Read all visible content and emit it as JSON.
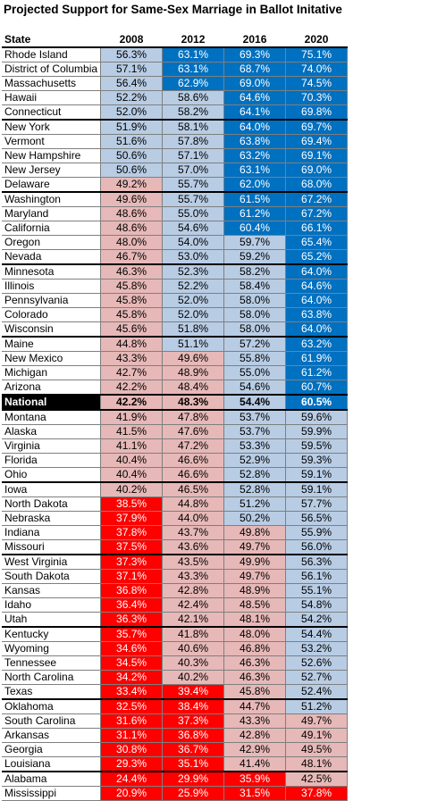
{
  "title": "Projected Support for Same-Sex Marriage in Ballot Initative",
  "table": {
    "header": [
      "State",
      "2008",
      "2012",
      "2016",
      "2020"
    ],
    "rows": [
      [
        "Rhode Island",
        "56.3%",
        "63.1%",
        "69.3%",
        "75.1%"
      ],
      [
        "District of Columbia",
        "57.1%",
        "63.1%",
        "68.7%",
        "74.0%"
      ],
      [
        "Massachusetts",
        "56.4%",
        "62.9%",
        "69.0%",
        "74.5%"
      ],
      [
        "Hawaii",
        "52.2%",
        "58.6%",
        "64.6%",
        "70.3%"
      ],
      [
        "Connecticut",
        "52.0%",
        "58.2%",
        "64.1%",
        "69.8%"
      ],
      [
        "New York",
        "51.9%",
        "58.1%",
        "64.0%",
        "69.7%"
      ],
      [
        "Vermont",
        "51.6%",
        "57.8%",
        "63.8%",
        "69.4%"
      ],
      [
        "New Hampshire",
        "50.6%",
        "57.1%",
        "63.2%",
        "69.1%"
      ],
      [
        "New Jersey",
        "50.6%",
        "57.0%",
        "63.1%",
        "69.0%"
      ],
      [
        "Delaware",
        "49.2%",
        "55.7%",
        "62.0%",
        "68.0%"
      ],
      [
        "Washington",
        "49.6%",
        "55.7%",
        "61.5%",
        "67.2%"
      ],
      [
        "Maryland",
        "48.6%",
        "55.0%",
        "61.2%",
        "67.2%"
      ],
      [
        "California",
        "48.6%",
        "54.6%",
        "60.4%",
        "66.1%"
      ],
      [
        "Oregon",
        "48.0%",
        "54.0%",
        "59.7%",
        "65.4%"
      ],
      [
        "Nevada",
        "46.7%",
        "53.0%",
        "59.2%",
        "65.2%"
      ],
      [
        "Minnesota",
        "46.3%",
        "52.3%",
        "58.2%",
        "64.0%"
      ],
      [
        "Illinois",
        "45.8%",
        "52.2%",
        "58.4%",
        "64.6%"
      ],
      [
        "Pennsylvania",
        "45.8%",
        "52.0%",
        "58.0%",
        "64.0%"
      ],
      [
        "Colorado",
        "45.8%",
        "52.0%",
        "58.0%",
        "63.8%"
      ],
      [
        "Wisconsin",
        "45.6%",
        "51.8%",
        "58.0%",
        "64.0%"
      ],
      [
        "Maine",
        "44.8%",
        "51.1%",
        "57.2%",
        "63.2%"
      ],
      [
        "New Mexico",
        "43.3%",
        "49.6%",
        "55.8%",
        "61.9%"
      ],
      [
        "Michigan",
        "42.7%",
        "48.9%",
        "55.0%",
        "61.2%"
      ],
      [
        "Arizona",
        "42.2%",
        "48.4%",
        "54.6%",
        "60.7%"
      ],
      [
        "National",
        "42.2%",
        "48.3%",
        "54.4%",
        "60.5%"
      ],
      [
        "Montana",
        "41.9%",
        "47.8%",
        "53.7%",
        "59.6%"
      ],
      [
        "Alaska",
        "41.5%",
        "47.6%",
        "53.7%",
        "59.9%"
      ],
      [
        "Virginia",
        "41.1%",
        "47.2%",
        "53.3%",
        "59.5%"
      ],
      [
        "Florida",
        "40.4%",
        "46.6%",
        "52.9%",
        "59.3%"
      ],
      [
        "Ohio",
        "40.4%",
        "46.6%",
        "52.8%",
        "59.1%"
      ],
      [
        "Iowa",
        "40.2%",
        "46.5%",
        "52.8%",
        "59.1%"
      ],
      [
        "North Dakota",
        "38.5%",
        "44.8%",
        "51.2%",
        "57.7%"
      ],
      [
        "Nebraska",
        "37.9%",
        "44.0%",
        "50.2%",
        "56.5%"
      ],
      [
        "Indiana",
        "37.8%",
        "43.7%",
        "49.8%",
        "55.9%"
      ],
      [
        "Missouri",
        "37.5%",
        "43.6%",
        "49.7%",
        "56.0%"
      ],
      [
        "West Virginia",
        "37.3%",
        "43.5%",
        "49.9%",
        "56.3%"
      ],
      [
        "South Dakota",
        "37.1%",
        "43.3%",
        "49.7%",
        "56.1%"
      ],
      [
        "Kansas",
        "36.8%",
        "42.8%",
        "48.9%",
        "55.1%"
      ],
      [
        "Idaho",
        "36.4%",
        "42.4%",
        "48.5%",
        "54.8%"
      ],
      [
        "Utah",
        "36.3%",
        "42.1%",
        "48.1%",
        "54.2%"
      ],
      [
        "Kentucky",
        "35.7%",
        "41.8%",
        "48.0%",
        "54.4%"
      ],
      [
        "Wyoming",
        "34.6%",
        "40.6%",
        "46.8%",
        "53.2%"
      ],
      [
        "Tennessee",
        "34.5%",
        "40.3%",
        "46.3%",
        "52.6%"
      ],
      [
        "North Carolina",
        "34.2%",
        "40.2%",
        "46.3%",
        "52.7%"
      ],
      [
        "Texas",
        "33.4%",
        "39.4%",
        "45.8%",
        "52.4%"
      ],
      [
        "Oklahoma",
        "32.5%",
        "38.4%",
        "44.7%",
        "51.2%"
      ],
      [
        "South Carolina",
        "31.6%",
        "37.3%",
        "43.3%",
        "49.7%"
      ],
      [
        "Arkansas",
        "31.1%",
        "36.8%",
        "42.8%",
        "49.1%"
      ],
      [
        "Georgia",
        "30.8%",
        "36.7%",
        "42.9%",
        "49.5%"
      ],
      [
        "Louisiana",
        "29.3%",
        "35.1%",
        "41.4%",
        "48.1%"
      ],
      [
        "Alabama",
        "24.4%",
        "29.9%",
        "35.9%",
        "42.5%"
      ],
      [
        "Mississippi",
        "20.9%",
        "25.9%",
        "31.5%",
        "37.8%"
      ]
    ]
  }
}
